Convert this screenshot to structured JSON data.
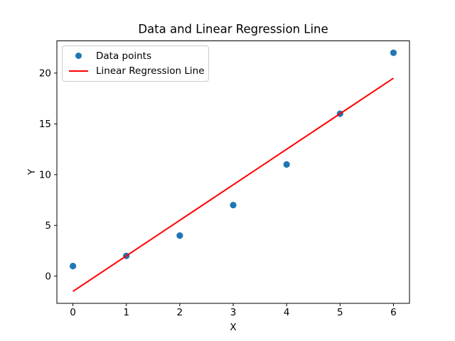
{
  "figure": {
    "background": "#ffffff",
    "text_color": "#000000",
    "frame_color": "#000000",
    "legend_border_color": "#cccccc"
  },
  "chart_data": {
    "type": "scatter",
    "title": "Data and Linear Regression Line",
    "xlabel": "X",
    "ylabel": "Y",
    "xlim": [
      -0.3,
      6.3
    ],
    "ylim": [
      -2.675,
      23.175
    ],
    "xticks": [
      0,
      1,
      2,
      3,
      4,
      5,
      6
    ],
    "yticks": [
      0,
      5,
      10,
      15,
      20
    ],
    "grid": false,
    "legend": {
      "position": "upper left"
    },
    "series": [
      {
        "name": "Data points",
        "type": "scatter",
        "color": "#1f77b4",
        "x": [
          0,
          1,
          2,
          3,
          4,
          5,
          6
        ],
        "y": [
          1,
          2,
          4,
          7,
          11,
          16,
          22
        ]
      },
      {
        "name": "Linear Regression Line",
        "type": "line",
        "color": "#ff0000",
        "x": [
          0,
          6
        ],
        "y": [
          -1.5,
          19.5
        ]
      }
    ]
  }
}
